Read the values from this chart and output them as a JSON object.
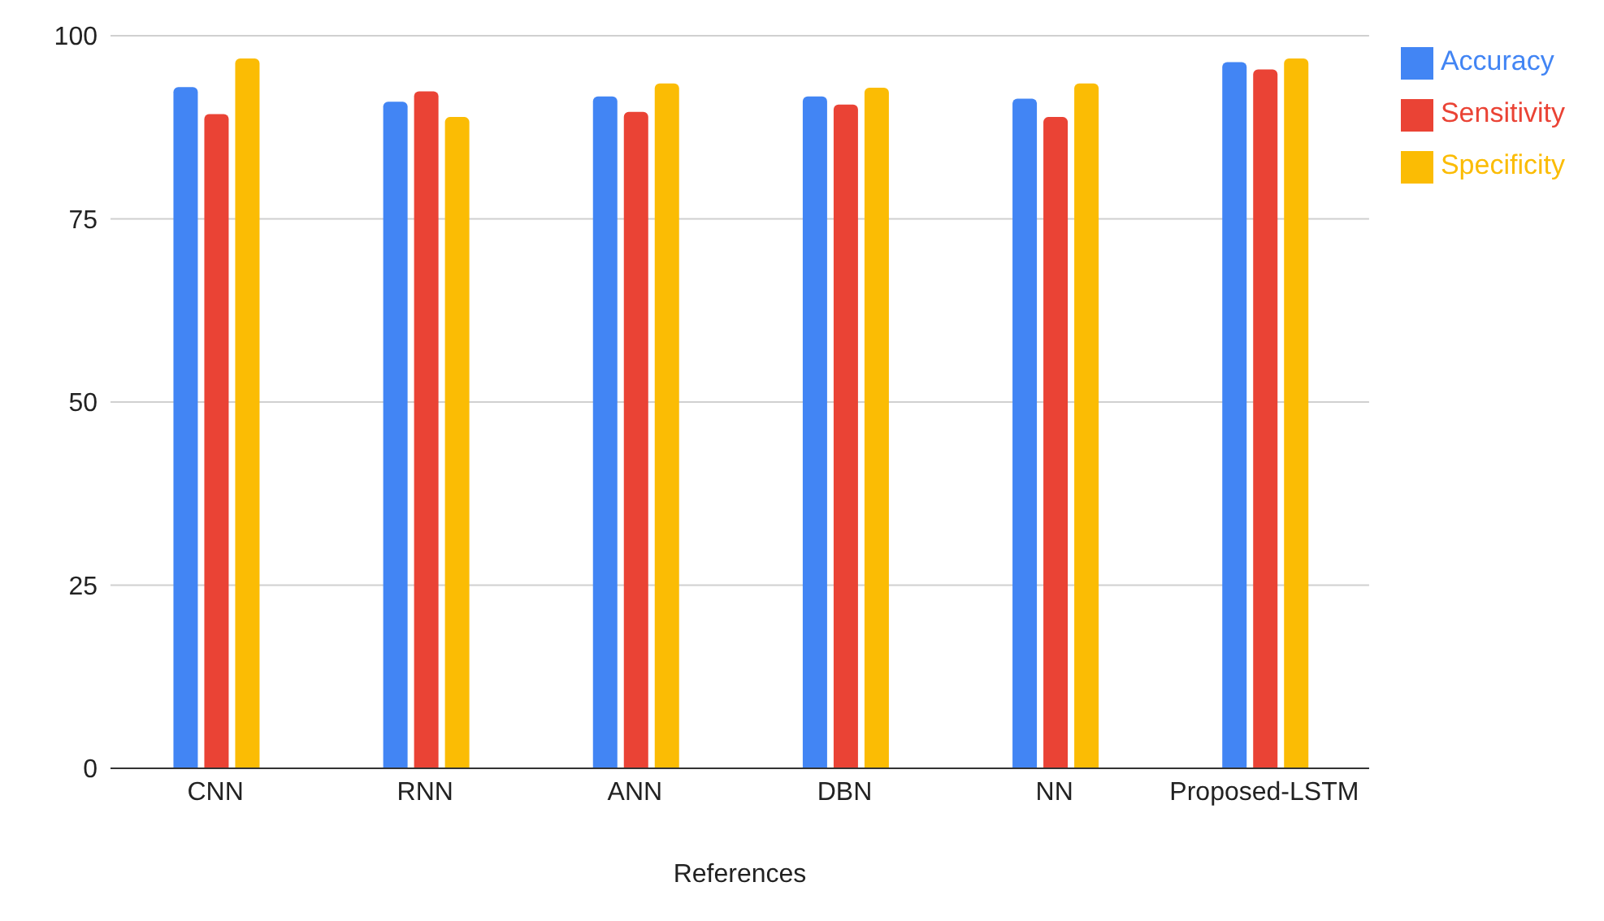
{
  "chart_data": {
    "type": "bar",
    "xlabel": "References",
    "categories": [
      "CNN",
      "RNN",
      "ANN",
      "DBN",
      "NN",
      "Proposed-LSTM"
    ],
    "series": [
      {
        "name": "Accuracy",
        "color": "#4285f4",
        "values": [
          93.0,
          91.0,
          91.7,
          91.7,
          91.4,
          96.4
        ]
      },
      {
        "name": "Sensitivity",
        "color": "#ea4335",
        "values": [
          89.3,
          92.4,
          89.6,
          90.6,
          88.9,
          95.4
        ]
      },
      {
        "name": "Specificity",
        "color": "#fbbc04",
        "values": [
          96.9,
          88.9,
          93.5,
          92.9,
          93.5,
          96.9
        ]
      }
    ],
    "ylim": [
      0,
      100
    ],
    "yticks": [
      0,
      25,
      50,
      75,
      100
    ],
    "grid": "y",
    "legend": "top right"
  }
}
